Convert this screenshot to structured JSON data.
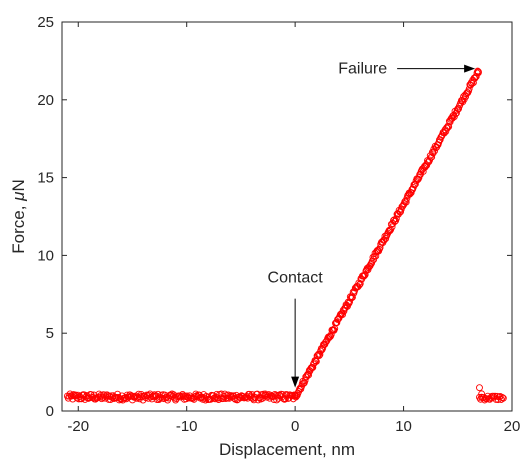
{
  "chart_data": {
    "type": "scatter",
    "title": "",
    "xlabel": "Displacement, nm",
    "ylabel_prefix": "Force, ",
    "ylabel_mu": "μ",
    "ylabel_suffix": "N",
    "xlim": [
      -21.5,
      20
    ],
    "ylim": [
      0,
      25
    ],
    "xticks": [
      -20,
      -10,
      0,
      10,
      20
    ],
    "yticks": [
      0,
      5,
      10,
      15,
      20,
      25
    ],
    "grid": false,
    "legend": "none",
    "marker_color": "#ff0000",
    "marker": "open-circle",
    "series": [
      {
        "segments": [
          {
            "x": [
              -21.0,
              0.0
            ],
            "y": [
              0.9,
              0.9
            ],
            "noise": 0.2,
            "n": 260
          },
          {
            "x": [
              0.0,
              16.9
            ],
            "y": [
              0.9,
              21.8
            ],
            "noise": 0.15,
            "n": 260
          },
          {
            "x": [
              17.0,
              19.2
            ],
            "y": [
              0.85,
              0.85
            ],
            "noise": 0.15,
            "n": 24
          }
        ],
        "extra_points": [
          {
            "x": 16.9,
            "y": 21.8
          },
          {
            "x": 17.0,
            "y": 1.5
          },
          {
            "x": 17.2,
            "y": 1.1
          }
        ]
      }
    ],
    "annotations": [
      {
        "text": "Contact",
        "target_x": 0.0,
        "target_y": 1.5
      },
      {
        "text": "Failure",
        "target_x": 16.6,
        "target_y": 22.0
      }
    ],
    "colors": {
      "axis": "#262626",
      "marker": "#ff0000",
      "background": "#ffffff"
    }
  }
}
